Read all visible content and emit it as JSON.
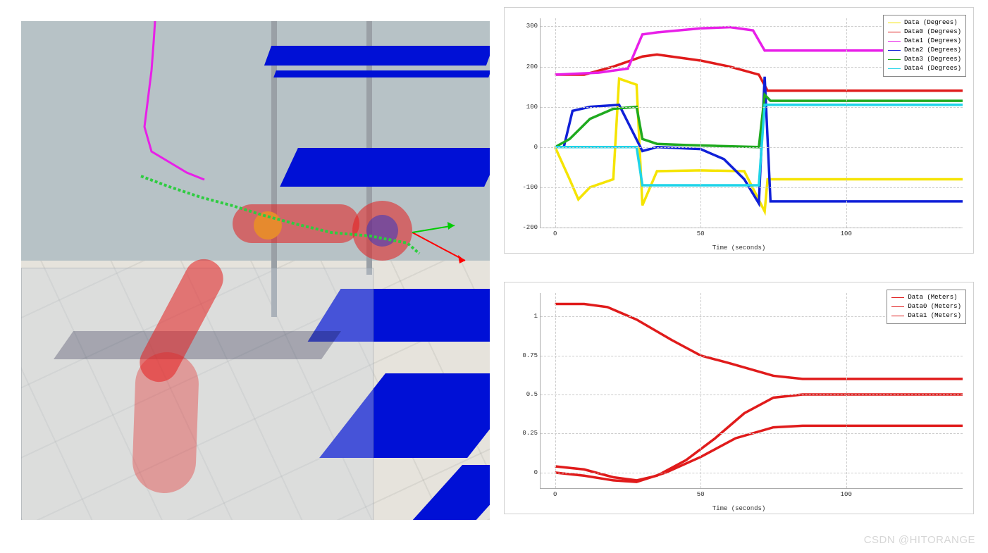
{
  "watermark": "CSDN @HITORANGE",
  "scene": {
    "sky_color": "#b7c2c6",
    "floor_color": "#e6e3dc",
    "tile_line_color": "rgba(0,0,0,0.06)",
    "shelf_color": "#0010d6",
    "shelf_post_color": "#9aa0a6",
    "glass_color": "rgba(200,210,220,0.35)",
    "robot_red": "rgba(230,30,30,0.65)",
    "robot_orange": "#e68a2e",
    "robot_blue": "rgba(40,50,200,0.5)",
    "traj_magenta": "#e81fe8",
    "traj_green": "#2ecc40",
    "axis_red": "#ff0000",
    "axis_green": "#00cc00"
  },
  "chart1": {
    "type": "line",
    "xlabel": "Time (seconds)",
    "xlim": [
      -5,
      140
    ],
    "ylim": [
      -200,
      320
    ],
    "xticks": [
      0,
      50,
      100
    ],
    "yticks": [
      -200,
      -100,
      0,
      100,
      200,
      300
    ],
    "grid_color": "#cccccc",
    "background_color": "#ffffff",
    "title_fontsize": 9,
    "label_fontsize": 9,
    "legend": [
      {
        "label": "Data (Degrees)",
        "color": "#f5e400"
      },
      {
        "label": "Data0 (Degrees)",
        "color": "#e01b1b"
      },
      {
        "label": "Data1 (Degrees)",
        "color": "#e81fe8"
      },
      {
        "label": "Data2 (Degrees)",
        "color": "#1020d8"
      },
      {
        "label": "Data3 (Degrees)",
        "color": "#1faa1f"
      },
      {
        "label": "Data4 (Degrees)",
        "color": "#1fd4e8"
      }
    ],
    "series": [
      {
        "color": "#f5e400",
        "points": [
          [
            0,
            0
          ],
          [
            5,
            -80
          ],
          [
            8,
            -130
          ],
          [
            12,
            -100
          ],
          [
            20,
            -80
          ],
          [
            22,
            170
          ],
          [
            28,
            155
          ],
          [
            30,
            -145
          ],
          [
            35,
            -60
          ],
          [
            50,
            -58
          ],
          [
            65,
            -60
          ],
          [
            72,
            -160
          ],
          [
            73,
            -80
          ],
          [
            140,
            -80
          ]
        ]
      },
      {
        "color": "#e01b1b",
        "points": [
          [
            0,
            180
          ],
          [
            10,
            180
          ],
          [
            20,
            200
          ],
          [
            30,
            225
          ],
          [
            35,
            230
          ],
          [
            50,
            215
          ],
          [
            60,
            200
          ],
          [
            70,
            180
          ],
          [
            73,
            140
          ],
          [
            140,
            140
          ]
        ]
      },
      {
        "color": "#e81fe8",
        "points": [
          [
            0,
            180
          ],
          [
            15,
            185
          ],
          [
            25,
            195
          ],
          [
            30,
            280
          ],
          [
            35,
            285
          ],
          [
            50,
            295
          ],
          [
            60,
            298
          ],
          [
            68,
            290
          ],
          [
            72,
            240
          ],
          [
            140,
            240
          ]
        ]
      },
      {
        "color": "#1020d8",
        "points": [
          [
            0,
            0
          ],
          [
            3,
            0
          ],
          [
            6,
            90
          ],
          [
            12,
            100
          ],
          [
            22,
            105
          ],
          [
            30,
            -10
          ],
          [
            35,
            0
          ],
          [
            50,
            -5
          ],
          [
            58,
            -30
          ],
          [
            65,
            -80
          ],
          [
            70,
            -140
          ],
          [
            72,
            175
          ],
          [
            74,
            -135
          ],
          [
            140,
            -135
          ]
        ]
      },
      {
        "color": "#1faa1f",
        "points": [
          [
            0,
            0
          ],
          [
            5,
            20
          ],
          [
            12,
            70
          ],
          [
            20,
            95
          ],
          [
            28,
            100
          ],
          [
            30,
            20
          ],
          [
            35,
            8
          ],
          [
            45,
            5
          ],
          [
            55,
            3
          ],
          [
            70,
            0
          ],
          [
            72,
            130
          ],
          [
            74,
            115
          ],
          [
            140,
            115
          ]
        ]
      },
      {
        "color": "#1fd4e8",
        "points": [
          [
            0,
            0
          ],
          [
            28,
            0
          ],
          [
            30,
            -95
          ],
          [
            70,
            -95
          ],
          [
            72,
            105
          ],
          [
            140,
            105
          ]
        ]
      }
    ]
  },
  "chart2": {
    "type": "line",
    "xlabel": "Time (seconds)",
    "xlim": [
      -5,
      140
    ],
    "ylim": [
      -0.1,
      1.15
    ],
    "xticks": [
      0,
      50,
      100
    ],
    "yticks": [
      0,
      0.25,
      0.5,
      0.75,
      1
    ],
    "grid_color": "#cccccc",
    "background_color": "#ffffff",
    "label_fontsize": 9,
    "legend": [
      {
        "label": "Data (Meters)",
        "color": "#e01b1b"
      },
      {
        "label": "Data0 (Meters)",
        "color": "#e01b1b"
      },
      {
        "label": "Data1 (Meters)",
        "color": "#e01b1b"
      }
    ],
    "series": [
      {
        "color": "#e01b1b",
        "points": [
          [
            0,
            1.08
          ],
          [
            10,
            1.08
          ],
          [
            18,
            1.06
          ],
          [
            28,
            0.98
          ],
          [
            40,
            0.85
          ],
          [
            50,
            0.75
          ],
          [
            60,
            0.7
          ],
          [
            75,
            0.62
          ],
          [
            85,
            0.6
          ],
          [
            140,
            0.6
          ]
        ]
      },
      {
        "color": "#e01b1b",
        "points": [
          [
            0,
            0.04
          ],
          [
            10,
            0.02
          ],
          [
            20,
            -0.03
          ],
          [
            28,
            -0.05
          ],
          [
            35,
            -0.02
          ],
          [
            45,
            0.08
          ],
          [
            55,
            0.22
          ],
          [
            65,
            0.38
          ],
          [
            75,
            0.48
          ],
          [
            85,
            0.5
          ],
          [
            140,
            0.5
          ]
        ]
      },
      {
        "color": "#e01b1b",
        "points": [
          [
            0,
            0.0
          ],
          [
            10,
            -0.02
          ],
          [
            20,
            -0.05
          ],
          [
            28,
            -0.06
          ],
          [
            38,
            0.0
          ],
          [
            50,
            0.1
          ],
          [
            62,
            0.22
          ],
          [
            75,
            0.29
          ],
          [
            85,
            0.3
          ],
          [
            140,
            0.3
          ]
        ]
      }
    ]
  }
}
